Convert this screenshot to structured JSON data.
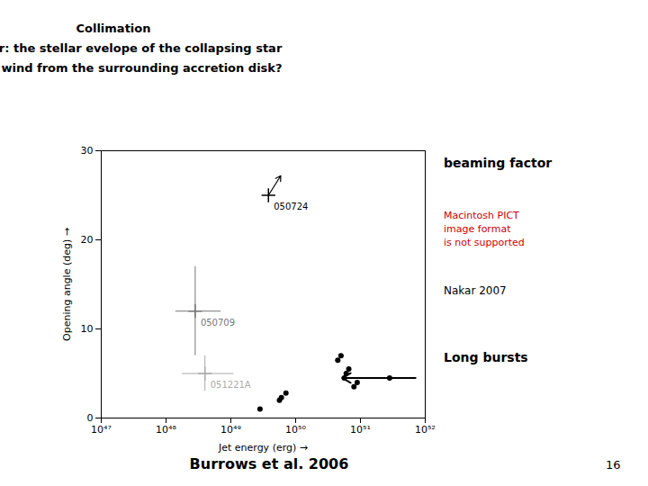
{
  "chart_data": {
    "type": "scatter",
    "title": "Collimation\ncollapsar: the stellar evelope of the collapsing star\nmerger: wind from the surrounding accretion disk?",
    "xlabel": "Jet energy (erg)",
    "ylabel": "Opening angle (deg)",
    "log": "x",
    "grid": false,
    "xlim": [
      1e+47,
      1e+52
    ],
    "xticks": [
      {
        "value": 1e+47,
        "label": "10⁴⁷"
      },
      {
        "value": 1e+48,
        "label": "10⁴⁸"
      },
      {
        "value": 1e+49,
        "label": "10⁴⁹"
      },
      {
        "value": 1e+50,
        "label": "10⁵⁰"
      },
      {
        "value": 1e+51,
        "label": "10⁵¹"
      },
      {
        "value": 1e+52,
        "label": "10⁵²"
      }
    ],
    "ylim": [
      0,
      30
    ],
    "yticks": [
      0,
      10,
      20,
      30
    ],
    "series": [
      {
        "type": "scatter",
        "marker": "circle",
        "color": "#000000",
        "x": [
          2.8183829312644537e+49,
          5.623413251903491e+49,
          6.025595860743578e+49,
          7.079457843841379e+49,
          4.466835921509631e+50,
          5.011872336272722e+50,
          5.623413251903491e+50,
          6.025595860743578e+50,
          6.606934480075959e+50,
          7.943282347242814e+50,
          8.912509381337455e+50,
          2.8183829312644536e+51
        ],
        "values": [
          1.0,
          2.0,
          2.3,
          2.8,
          6.5,
          7.0,
          4.5,
          5.0,
          5.5,
          3.5,
          4.0,
          4.5
        ]
      },
      {
        "name": "050709",
        "type": "errorbar",
        "marker": "plus",
        "color": "#777777",
        "x": [
          2.818382931264454e+48
        ],
        "values": [
          12.0
        ],
        "x_low": [
          1.4125375446227544e+48
        ],
        "x_high": [
          7.079457843841379e+48
        ],
        "yerr": [
          5.0
        ]
      },
      {
        "name": "051221A",
        "type": "errorbar",
        "marker": "plus",
        "color": "#aaaaaa",
        "x": [
          3.981071705534972e+48
        ],
        "values": [
          5.0
        ],
        "x_low": [
          1.778279410038923e+48
        ],
        "x_high": [
          1.1220184543019633e+49
        ],
        "yerr": [
          2.0
        ]
      },
      {
        "name": "050724",
        "type": "scatter",
        "marker": "plus",
        "color": "#000000",
        "x": [
          3.801893963205611e+49
        ],
        "values": [
          25.0
        ]
      }
    ],
    "arrows": [
      {
        "x": [
          3.801893963205611e+49,
          5.892935642968697e+49
        ],
        "y": [
          25.0,
          27.2
        ],
        "color": "#000000"
      },
      {
        "x": [
          7.079457843841379e+51,
          5.248074602497726e+50
        ],
        "y": [
          4.5,
          4.5
        ],
        "color": "#000000"
      }
    ],
    "annotations": [
      {
        "text": "beaming factor"
      },
      {
        "text": "Macintosh PICT\nimage format\nis not supported",
        "color": "#cc0000"
      },
      {
        "text": "Nakar 2007"
      },
      {
        "text": "Long bursts"
      },
      {
        "text": "Burrows et al. 2006"
      },
      {
        "text": "16"
      }
    ]
  }
}
